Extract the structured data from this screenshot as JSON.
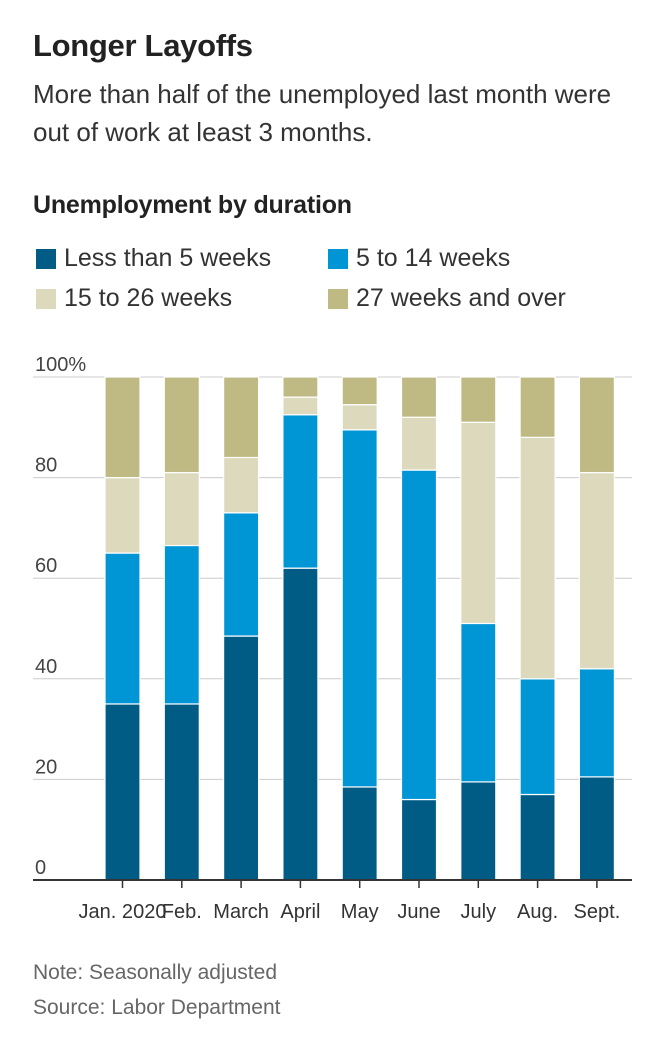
{
  "header": {
    "title": "Longer Layoffs",
    "subtitle": "More than half of the unemployed last month were out of work at least 3 months."
  },
  "chart_heading": "Unemployment by duration",
  "footer": {
    "note": "Note: Seasonally adjusted",
    "source": "Source: Labor Department"
  },
  "chart_data": {
    "type": "bar",
    "stacked": true,
    "title": "Unemployment by duration",
    "xlabel": "",
    "ylabel": "",
    "ylim": [
      0,
      100
    ],
    "yticks": [
      0,
      20,
      40,
      60,
      80,
      100
    ],
    "ytick_labels": [
      "0",
      "20",
      "40",
      "60",
      "80",
      "100%"
    ],
    "grid": true,
    "legend_position": "top",
    "categories": [
      "Jan. 2020",
      "Feb.",
      "March",
      "April",
      "May",
      "June",
      "July",
      "Aug.",
      "Sept."
    ],
    "series": [
      {
        "name": "Less than 5 weeks",
        "color": "#005b85",
        "values": [
          35,
          35,
          48.5,
          62,
          18.5,
          16,
          19.5,
          17,
          20.5
        ]
      },
      {
        "name": "5 to 14 weeks",
        "color": "#0096d6",
        "values": [
          30,
          31.5,
          24.5,
          30.5,
          71,
          65.5,
          31.5,
          23,
          21.5
        ]
      },
      {
        "name": "15 to 26 weeks",
        "color": "#ddd9bd",
        "values": [
          15,
          14.5,
          11,
          3.5,
          5,
          10.5,
          40,
          48,
          39
        ]
      },
      {
        "name": "27 weeks and over",
        "color": "#bfb984",
        "values": [
          20,
          19,
          16,
          4,
          5.5,
          8,
          9,
          12,
          19
        ]
      }
    ]
  }
}
